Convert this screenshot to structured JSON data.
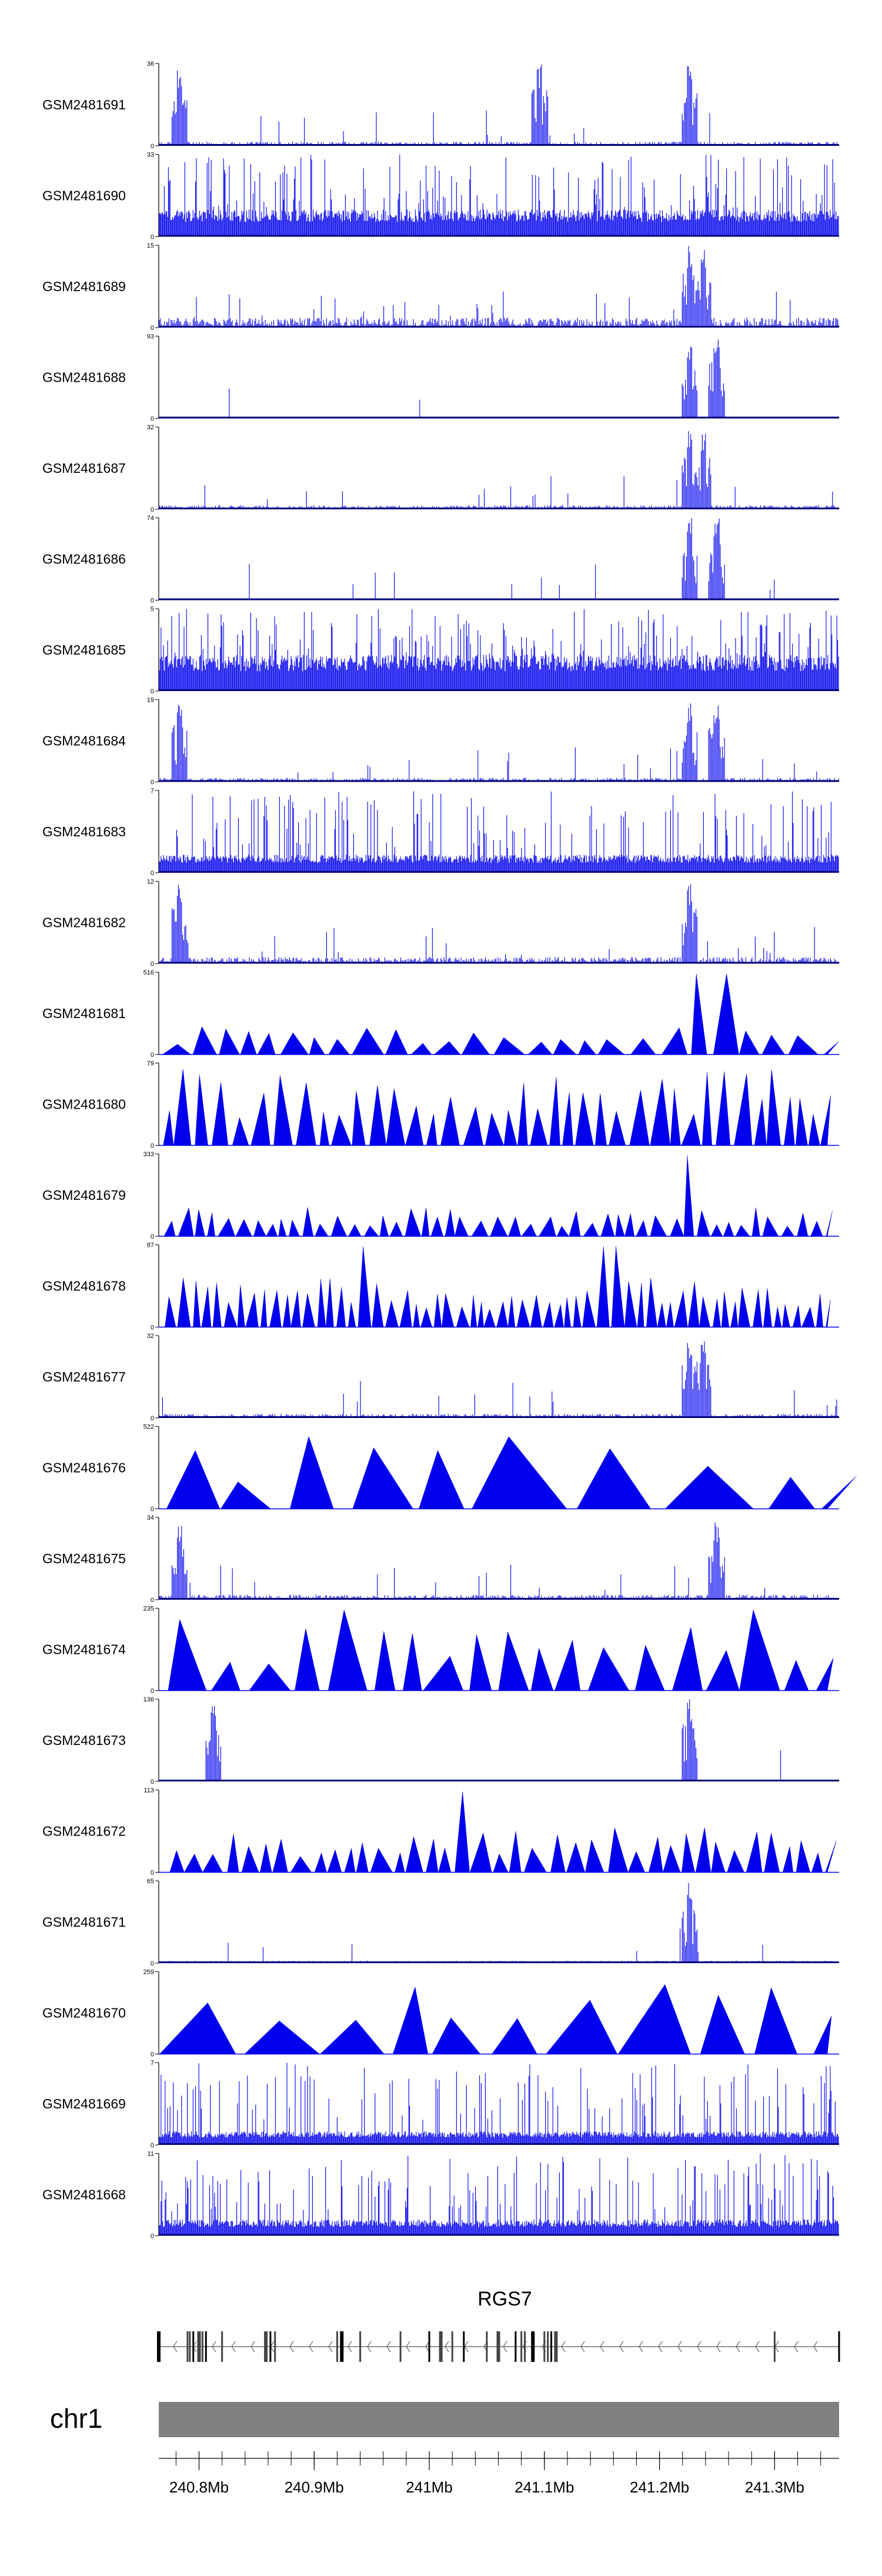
{
  "chart_data": {
    "type": "area",
    "x_range": [
      240.765,
      241.356
    ],
    "x_unit": "Mb",
    "colors": {
      "signal": "#0000ee",
      "axis": "#000000",
      "ideogram": "#808080",
      "gene": "#000000"
    },
    "tracks": [
      {
        "name": "GSM2481691",
        "ymax": "36",
        "ymin": "0",
        "style": "spikes",
        "density": 0.18,
        "base": 0.05,
        "peaks": [
          0.03,
          0.56,
          0.78
        ]
      },
      {
        "name": "GSM2481690",
        "ymax": "33",
        "ymin": "0",
        "style": "dense",
        "density": 0.75,
        "base": 0.3,
        "peaks": []
      },
      {
        "name": "GSM2481689",
        "ymax": "15",
        "ymin": "0",
        "style": "spikes",
        "density": 0.35,
        "base": 0.12,
        "peaks": [
          0.78,
          0.8
        ]
      },
      {
        "name": "GSM2481688",
        "ymax": "93",
        "ymin": "0",
        "style": "spikes",
        "density": 0.05,
        "base": 0.02,
        "peaks": [
          0.78,
          0.82
        ]
      },
      {
        "name": "GSM2481687",
        "ymax": "32",
        "ymin": "0",
        "style": "spikes",
        "density": 0.2,
        "base": 0.05,
        "peaks": [
          0.78,
          0.8
        ]
      },
      {
        "name": "GSM2481686",
        "ymax": "74",
        "ymin": "0",
        "style": "spikes",
        "density": 0.08,
        "base": 0.02,
        "peaks": [
          0.78,
          0.82
        ]
      },
      {
        "name": "GSM2481685",
        "ymax": "5",
        "ymin": "0",
        "style": "dense",
        "density": 0.9,
        "base": 0.4,
        "peaks": []
      },
      {
        "name": "GSM2481684",
        "ymax": "19",
        "ymin": "0",
        "style": "spikes",
        "density": 0.15,
        "base": 0.05,
        "peaks": [
          0.03,
          0.78,
          0.82
        ]
      },
      {
        "name": "GSM2481683",
        "ymax": "7",
        "ymin": "0",
        "style": "dense",
        "density": 0.7,
        "base": 0.2,
        "peaks": []
      },
      {
        "name": "GSM2481682",
        "ymax": "12",
        "ymin": "0",
        "style": "spikes",
        "density": 0.3,
        "base": 0.08,
        "peaks": [
          0.03,
          0.78
        ]
      },
      {
        "name": "GSM2481681",
        "ymax": "516",
        "ymin": "0",
        "style": "triangles",
        "n": 30,
        "hmax": 0.35,
        "peaks": [
          0.78,
          0.82
        ]
      },
      {
        "name": "GSM2481680",
        "ymax": "79",
        "ymin": "0",
        "style": "triangles",
        "n": 45,
        "hmax": 0.95,
        "peaks": []
      },
      {
        "name": "GSM2481679",
        "ymax": "333",
        "ymin": "0",
        "style": "triangles",
        "n": 55,
        "hmax": 0.35,
        "peaks": [
          0.78
        ]
      },
      {
        "name": "GSM2481678",
        "ymax": "87",
        "ymin": "0",
        "style": "triangles",
        "n": 70,
        "hmax": 0.6,
        "peaks": [
          0.3,
          0.66
        ]
      },
      {
        "name": "GSM2481677",
        "ymax": "32",
        "ymin": "0",
        "style": "spikes",
        "density": 0.18,
        "base": 0.05,
        "peaks": [
          0.78,
          0.8
        ]
      },
      {
        "name": "GSM2481676",
        "ymax": "522",
        "ymin": "0",
        "style": "triangles",
        "n": 10,
        "hmax": 0.9,
        "peaks": []
      },
      {
        "name": "GSM2481675",
        "ymax": "34",
        "ymin": "0",
        "style": "spikes",
        "density": 0.2,
        "base": 0.06,
        "peaks": [
          0.03,
          0.82
        ]
      },
      {
        "name": "GSM2481674",
        "ymax": "235",
        "ymin": "0",
        "style": "triangles",
        "n": 22,
        "hmax": 0.9,
        "peaks": [
          0.28,
          0.87,
          0.92
        ]
      },
      {
        "name": "GSM2481673",
        "ymax": "136",
        "ymin": "0",
        "style": "spikes",
        "density": 0.06,
        "base": 0.02,
        "peaks": [
          0.08,
          0.78
        ]
      },
      {
        "name": "GSM2481672",
        "ymax": "113",
        "ymin": "0",
        "style": "triangles",
        "n": 42,
        "hmax": 0.55,
        "peaks": [
          0.44
        ]
      },
      {
        "name": "GSM2481671",
        "ymax": "65",
        "ymin": "0",
        "style": "spikes",
        "density": 0.1,
        "base": 0.03,
        "peaks": [
          0.78
        ]
      },
      {
        "name": "GSM2481670",
        "ymax": "259",
        "ymin": "0",
        "style": "triangles",
        "n": 12,
        "hmax": 0.95,
        "peaks": []
      },
      {
        "name": "GSM2481669",
        "ymax": "7",
        "ymin": "0",
        "style": "dense",
        "density": 0.55,
        "base": 0.15,
        "peaks": []
      },
      {
        "name": "GSM2481668",
        "ymax": "11",
        "ymin": "0",
        "style": "dense",
        "density": 0.6,
        "base": 0.18,
        "peaks": []
      }
    ],
    "gene": {
      "name": "RGS7",
      "start": 240.765,
      "end": 241.356,
      "strand": "-",
      "exons": [
        240.765,
        240.79,
        240.792,
        240.795,
        240.8,
        240.803,
        240.806,
        240.82,
        240.858,
        240.862,
        240.866,
        240.92,
        240.924,
        240.94,
        240.975,
        241.0,
        241.01,
        241.02,
        241.03,
        241.05,
        241.06,
        241.075,
        241.08,
        241.083,
        241.09,
        241.1,
        241.103,
        241.106,
        241.11,
        241.3,
        241.356
      ]
    },
    "ideogram": {
      "chromosome": "chr1"
    },
    "axis": {
      "ticks": [
        240.8,
        240.9,
        241.0,
        241.1,
        241.2,
        241.3
      ],
      "tick_labels": [
        "240.8Mb",
        "240.9Mb",
        "241Mb",
        "241.1Mb",
        "241.2Mb",
        "241.3Mb"
      ],
      "minor_step": 0.02
    }
  }
}
